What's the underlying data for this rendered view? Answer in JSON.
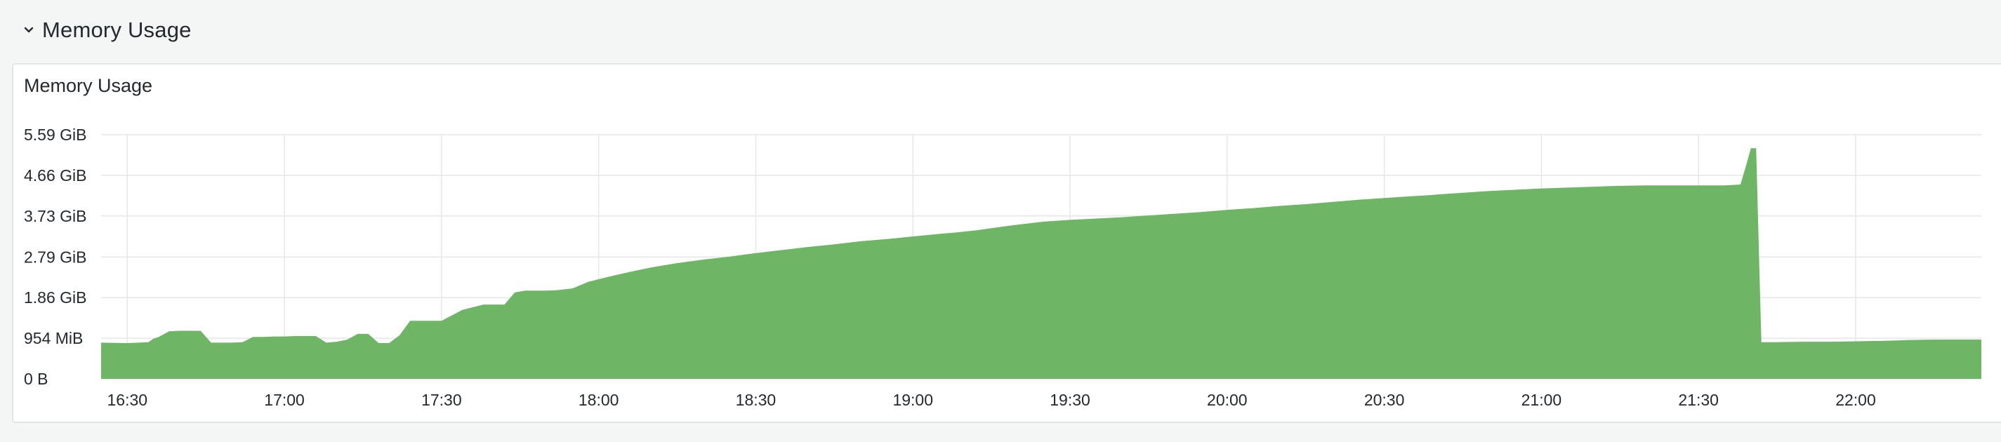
{
  "row": {
    "title": "Memory Usage",
    "toggle_icon": "chevron-down-icon"
  },
  "panel": {
    "title": "Memory Usage"
  },
  "colors": {
    "series_fill": "#6eb566",
    "grid": "#e6e7e8",
    "text": "#24292e"
  },
  "chart_data": {
    "type": "area",
    "title": "Memory Usage",
    "xlabel": "",
    "ylabel": "",
    "y_unit": "GiB",
    "ylim": [
      0,
      5.59
    ],
    "grid": true,
    "legend": "none",
    "x_tick_labels": [
      "16:30",
      "17:00",
      "17:30",
      "18:00",
      "18:30",
      "19:00",
      "19:30",
      "20:00",
      "20:30",
      "21:00",
      "21:30",
      "22:00"
    ],
    "y_tick_labels": [
      "0 B",
      "954 MiB",
      "1.86 GiB",
      "2.79 GiB",
      "3.73 GiB",
      "4.66 GiB",
      "5.59 GiB"
    ],
    "y_tick_values": [
      0,
      0.93,
      1.86,
      2.79,
      3.73,
      4.66,
      5.59
    ],
    "x_range": [
      "16:25",
      "22:24"
    ],
    "series": [
      {
        "x": [
          "16:25",
          "16:30",
          "16:32",
          "16:34",
          "16:35",
          "16:36",
          "16:38",
          "16:40",
          "16:42",
          "16:44",
          "16:46",
          "16:48",
          "16:50",
          "16:52",
          "16:54",
          "16:56",
          "16:58",
          "17:00",
          "17:02",
          "17:04",
          "17:06",
          "17:08",
          "17:10",
          "17:12",
          "17:14",
          "17:16",
          "17:18",
          "17:20",
          "17:22",
          "17:24",
          "17:26",
          "17:30",
          "17:34",
          "17:38",
          "17:40",
          "17:42",
          "17:44",
          "17:46",
          "17:48",
          "17:50",
          "17:52",
          "17:55",
          "17:58",
          "18:00",
          "18:03",
          "18:06",
          "18:08",
          "18:10",
          "18:15",
          "18:20",
          "18:25",
          "18:30",
          "18:35",
          "18:40",
          "18:45",
          "18:50",
          "18:55",
          "19:00",
          "19:05",
          "19:08",
          "19:12",
          "19:15",
          "19:18",
          "19:20",
          "19:25",
          "19:30",
          "19:35",
          "19:40",
          "19:45",
          "19:50",
          "19:55",
          "20:00",
          "20:05",
          "20:10",
          "20:15",
          "20:20",
          "20:25",
          "20:30",
          "20:35",
          "20:38",
          "20:40",
          "20:45",
          "20:50",
          "20:55",
          "21:00",
          "21:05",
          "21:10",
          "21:15",
          "21:20",
          "21:25",
          "21:30",
          "21:35",
          "21:38",
          "21:39",
          "21:40",
          "21:41",
          "21:42",
          "21:45",
          "21:50",
          "21:55",
          "22:00",
          "22:05",
          "22:08",
          "22:10",
          "22:15",
          "22:20",
          "22:24"
        ],
        "values": [
          0.83,
          0.82,
          0.83,
          0.84,
          0.92,
          0.96,
          1.09,
          1.1,
          1.1,
          1.1,
          0.83,
          0.83,
          0.83,
          0.84,
          0.96,
          0.96,
          0.97,
          0.97,
          0.98,
          0.98,
          0.98,
          0.83,
          0.85,
          0.9,
          1.03,
          1.03,
          0.82,
          0.82,
          1.0,
          1.33,
          1.33,
          1.33,
          1.58,
          1.7,
          1.7,
          1.7,
          1.98,
          2.02,
          2.02,
          2.02,
          2.03,
          2.07,
          2.22,
          2.28,
          2.37,
          2.45,
          2.5,
          2.55,
          2.65,
          2.73,
          2.8,
          2.88,
          2.95,
          3.02,
          3.08,
          3.15,
          3.2,
          3.26,
          3.32,
          3.35,
          3.4,
          3.45,
          3.5,
          3.53,
          3.6,
          3.64,
          3.67,
          3.7,
          3.74,
          3.78,
          3.82,
          3.87,
          3.91,
          3.96,
          4.0,
          4.05,
          4.1,
          4.14,
          4.18,
          4.2,
          4.22,
          4.26,
          4.3,
          4.33,
          4.36,
          4.38,
          4.4,
          4.42,
          4.43,
          4.43,
          4.43,
          4.43,
          4.45,
          4.85,
          5.28,
          5.28,
          0.84,
          0.84,
          0.85,
          0.85,
          0.86,
          0.87,
          0.88,
          0.89,
          0.9,
          0.9,
          0.9
        ]
      }
    ]
  }
}
